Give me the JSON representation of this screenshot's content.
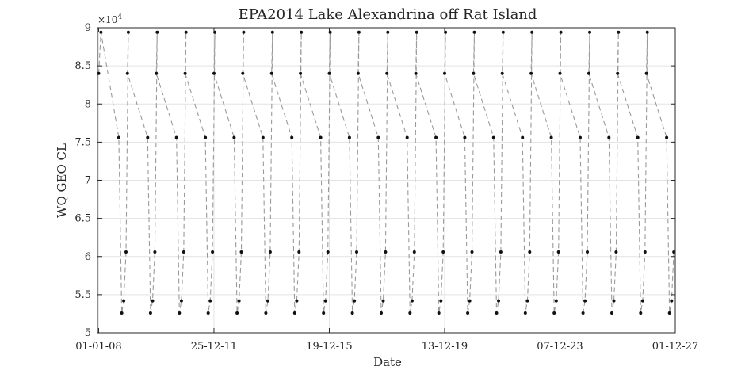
{
  "chart_data": {
    "type": "line",
    "title": "EPA2014 Lake Alexandrina off Rat Island",
    "xlabel": "Date",
    "ylabel": "WQ GEO CL",
    "y_exponent_label": "×10",
    "y_exponent_power": "4",
    "ylim": [
      50000,
      90000
    ],
    "yticks": [
      50000,
      55000,
      60000,
      65000,
      70000,
      75000,
      80000,
      85000,
      90000
    ],
    "ytick_labels": [
      "5",
      "5.5",
      "6",
      "6.5",
      "7",
      "7.5",
      "8",
      "8.5",
      "9"
    ],
    "xlim": [
      -0.04,
      20.0
    ],
    "xticks": [
      0,
      4,
      8,
      12,
      16,
      20
    ],
    "xtick_labels": [
      "01-01-08",
      "25-12-11",
      "19-12-15",
      "13-12-19",
      "07-12-23",
      "01-12-27"
    ],
    "grid": true,
    "line_style": "dashed",
    "marker": "dot",
    "cycle_length_years": 1,
    "cycle_offsets": [
      0,
      0.7,
      0.8,
      0.87,
      0.95,
      1.03
    ],
    "cycle_values": [
      84000,
      75600,
      52600,
      54200,
      60600,
      89400
    ],
    "first_cycle_values": [
      84000,
      89400
    ],
    "cycles": 20
  }
}
